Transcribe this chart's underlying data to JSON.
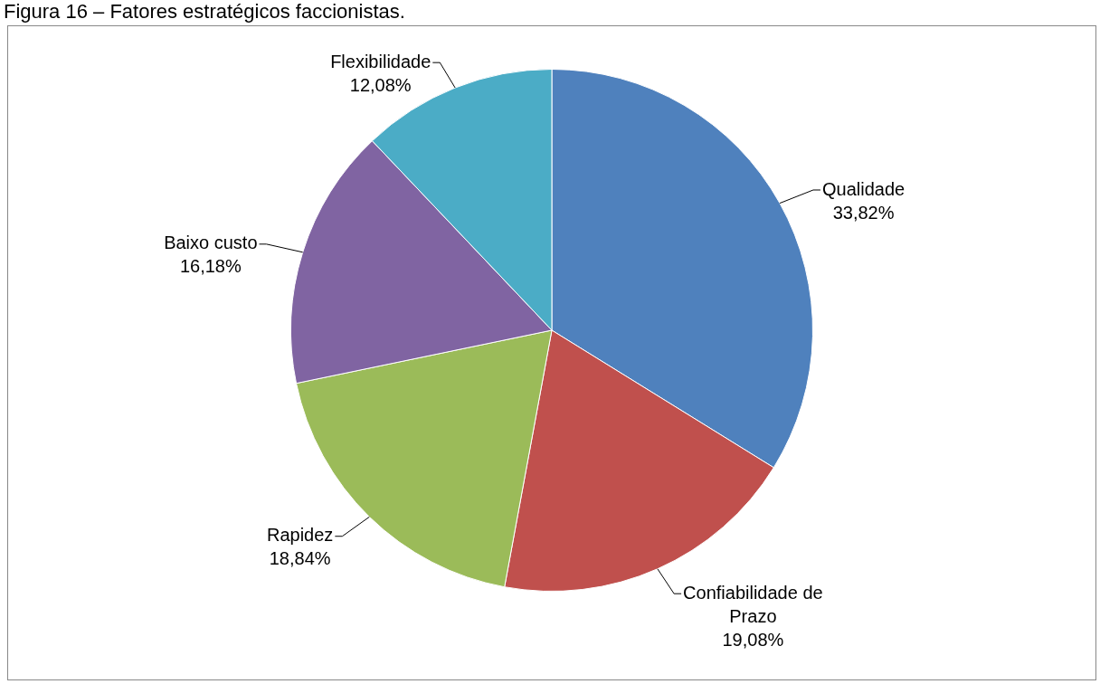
{
  "chart_data": {
    "type": "pie",
    "title": "Figura 16 – Fatores estratégicos faccionistas.",
    "categories": [
      "Qualidade",
      "Confiabilidade de Prazo",
      "Rapidez",
      "Baixo custo",
      "Flexibilidade"
    ],
    "values": [
      33.82,
      19.08,
      18.84,
      16.18,
      12.08
    ],
    "colors": [
      "#4f81bd",
      "#c0504d",
      "#9bbb59",
      "#8064a2",
      "#4bacc6"
    ],
    "value_labels": [
      "33,82%",
      "19,08%",
      "18,84%",
      "16,18%",
      "12,08%"
    ],
    "legend": false
  }
}
